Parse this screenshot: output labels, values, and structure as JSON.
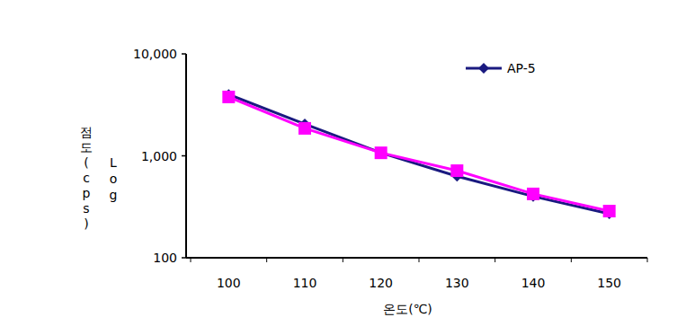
{
  "chart_data": {
    "type": "line",
    "x_label": "온도(℃)",
    "y_label": "점도(cps)",
    "annotations": [
      "Log"
    ],
    "categories": [
      "100",
      "110",
      "120",
      "130",
      "140",
      "150"
    ],
    "series": [
      {
        "name": "AP-5",
        "color": "#1a1a80",
        "marker": "diamond",
        "values": [
          4000,
          2050,
          1070,
          630,
          400,
          270
        ]
      },
      {
        "color": "#ff00ff",
        "marker": "square",
        "values": [
          3780,
          1860,
          1070,
          715,
          423,
          287
        ]
      }
    ],
    "ylim": [
      100,
      10000
    ],
    "yticks": [
      {
        "value": 100,
        "label": "100"
      },
      {
        "value": 1000,
        "label": "1,000"
      },
      {
        "value": 10000,
        "label": "10,000"
      }
    ],
    "log": "y",
    "grid": false,
    "legend": "top-right"
  }
}
